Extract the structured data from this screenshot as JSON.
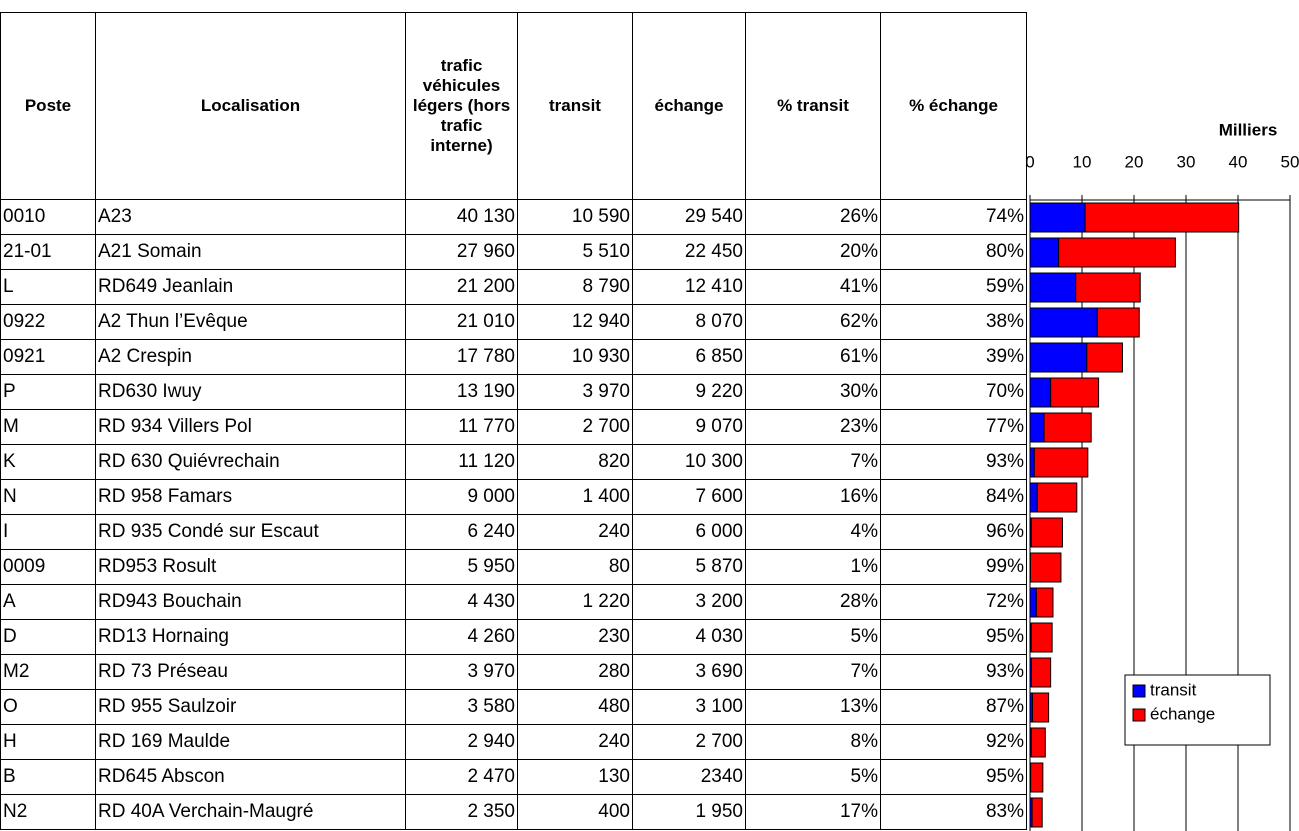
{
  "table": {
    "columns": [
      "Poste",
      "Localisation",
      "trafic véhicules légers (hors trafic interne)",
      "transit",
      "échange",
      "% transit",
      "% échange"
    ],
    "rows": [
      [
        "0010",
        "A23",
        "40 130",
        "10 590",
        "29 540",
        "26%",
        "74%"
      ],
      [
        "21-01",
        "A21 Somain",
        "27 960",
        "5 510",
        "22 450",
        "20%",
        "80%"
      ],
      [
        "L",
        "RD649 Jeanlain",
        "21 200",
        "8 790",
        "12 410",
        "41%",
        "59%"
      ],
      [
        "0922",
        "A2 Thun l’Evêque",
        "21 010",
        "12 940",
        "8 070",
        "62%",
        "38%"
      ],
      [
        "0921",
        "A2 Crespin",
        "17 780",
        "10 930",
        "6 850",
        "61%",
        "39%"
      ],
      [
        "P",
        "RD630 Iwuy",
        "13 190",
        "3 970",
        "9 220",
        "30%",
        "70%"
      ],
      [
        "M",
        "RD 934 Villers Pol",
        "11 770",
        "2 700",
        "9 070",
        "23%",
        "77%"
      ],
      [
        "K",
        "RD 630 Quiévrechain",
        "11 120",
        "820",
        "10 300",
        "7%",
        "93%"
      ],
      [
        "N",
        "RD 958 Famars",
        "9 000",
        "1 400",
        "7 600",
        "16%",
        "84%"
      ],
      [
        "I",
        "RD 935 Condé sur Escaut",
        "6 240",
        "240",
        "6 000",
        "4%",
        "96%"
      ],
      [
        "0009",
        "RD953 Rosult",
        "5 950",
        "80",
        "5 870",
        "1%",
        "99%"
      ],
      [
        "A",
        "RD943 Bouchain",
        "4 430",
        "1 220",
        "3 200",
        "28%",
        "72%"
      ],
      [
        "D",
        "RD13 Hornaing",
        "4 260",
        "230",
        "4 030",
        "5%",
        "95%"
      ],
      [
        "M2",
        "RD 73 Préseau",
        "3 970",
        "280",
        "3 690",
        "7%",
        "93%"
      ],
      [
        "O",
        "RD 955 Saulzoir",
        "3 580",
        "480",
        "3 100",
        "13%",
        "87%"
      ],
      [
        "H",
        "RD 169 Maulde",
        "2 940",
        "240",
        "2 700",
        "8%",
        "92%"
      ],
      [
        "B",
        "RD645 Abscon",
        "2 470",
        "130",
        "2340",
        "5%",
        "95%"
      ],
      [
        "N2",
        "RD 40A Verchain-Maugré",
        "2 350",
        "400",
        "1 950",
        "17%",
        "83%"
      ]
    ]
  },
  "chart_data": {
    "type": "bar",
    "orientation": "horizontal",
    "stacked": true,
    "xlabel": "Milliers",
    "xlim": [
      0,
      50
    ],
    "xticks": [
      0,
      10,
      20,
      30,
      40,
      50
    ],
    "grid": true,
    "legend": "lower right",
    "series": [
      {
        "name": "transit",
        "color": "#0000ff",
        "values": [
          10.59,
          5.51,
          8.79,
          12.94,
          10.93,
          3.97,
          2.7,
          0.82,
          1.4,
          0.24,
          0.08,
          1.22,
          0.23,
          0.28,
          0.48,
          0.24,
          0.13,
          0.4
        ]
      },
      {
        "name": "échange",
        "color": "#ff0000",
        "values": [
          29.54,
          22.45,
          12.41,
          8.07,
          6.85,
          9.22,
          9.07,
          10.3,
          7.6,
          6.0,
          5.87,
          3.2,
          4.03,
          3.69,
          3.1,
          2.7,
          2.34,
          1.95
        ]
      }
    ]
  }
}
